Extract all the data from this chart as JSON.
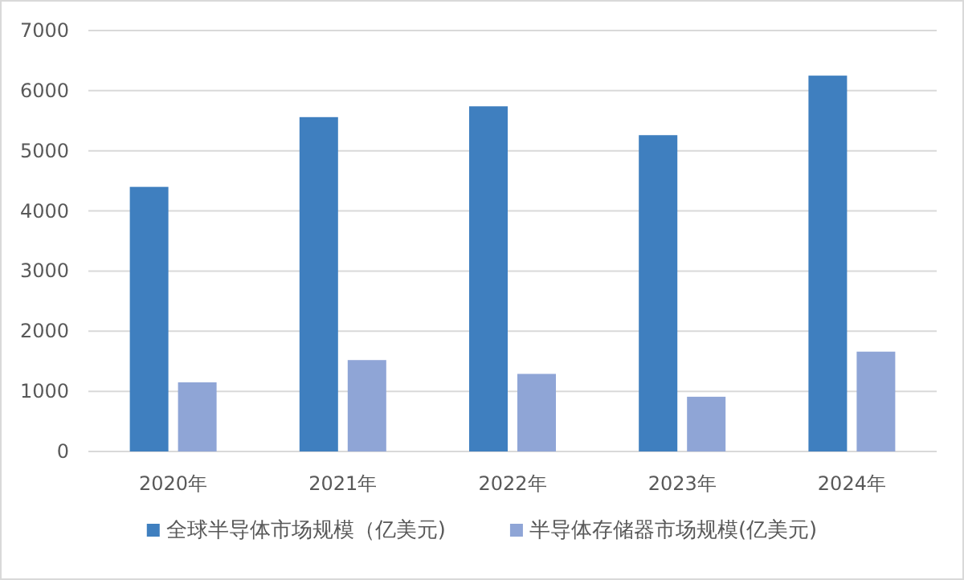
{
  "chart_data": {
    "type": "bar",
    "categories": [
      "2020年",
      "2021年",
      "2022年",
      "2023年",
      "2024年"
    ],
    "series": [
      {
        "name": "全球半导体市场规模（亿美元)",
        "color": "#3f7fbf",
        "values": [
          4400,
          5560,
          5740,
          5260,
          6250
        ]
      },
      {
        "name": "半导体存储器市场规模(亿美元)",
        "color": "#8fa5d6",
        "values": [
          1150,
          1520,
          1290,
          910,
          1660
        ]
      }
    ],
    "ylim": [
      0,
      7000
    ],
    "yticks": [
      0,
      1000,
      2000,
      3000,
      4000,
      5000,
      6000,
      7000
    ],
    "grid": "y",
    "legend": "bottom"
  }
}
